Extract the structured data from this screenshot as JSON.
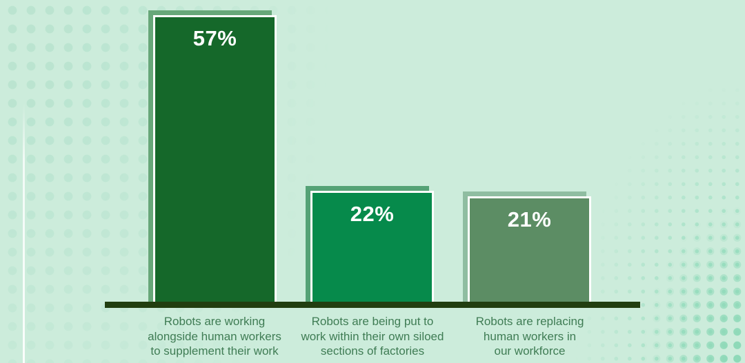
{
  "chart_data": {
    "type": "bar",
    "orientation": "vertical",
    "title": "",
    "xlabel": "",
    "ylabel": "",
    "ylim": [
      0,
      60
    ],
    "grid": false,
    "legend": false,
    "categories": [
      "Robots are working\nalongside human workers\nto supplement their work",
      "Robots are being put to\nwork within their own siloed\nsections of factories",
      "Robots are replacing\nhuman workers in\nour workforce"
    ],
    "values": [
      57,
      22,
      21
    ],
    "value_labels": [
      "57%",
      "22%",
      "21%"
    ]
  },
  "theme": {
    "background": "#ccecdb",
    "bar_fill_colors": [
      "#15682a",
      "#068a4b",
      "#5c8d64"
    ],
    "bar_shadow_colors": [
      "#67a779",
      "#55a276",
      "#8fbda1"
    ],
    "bar_border_color": "#ffffff",
    "baseline_color": "#213e10",
    "category_label_color": "#3f7c54",
    "value_label_color": "#ffffff",
    "dot_color_left": "#b9e4d0",
    "dot_color_right": "#92dcbc"
  }
}
